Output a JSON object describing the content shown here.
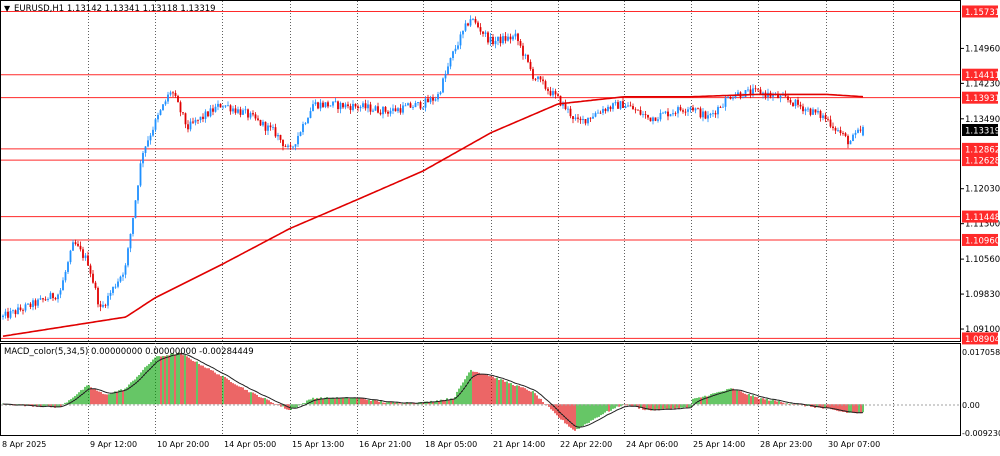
{
  "header": {
    "symbol_line": "EURUSD,H1  1.13142 1.13341 1.13118 1.13319"
  },
  "indicator": {
    "label": "MACD_color(5,34,5) 0.00000000 0.00000000 -0.00284449"
  },
  "colors": {
    "bull": "#1e90ff",
    "bear": "#e00000",
    "ma": "#e00000",
    "hline": "#ff2a2a",
    "macd_up": "#00a000",
    "macd_down": "#e00000",
    "signal": "#202020",
    "grid": "#606060",
    "current_price_bg": "#000000"
  },
  "price_axis": {
    "ticks": [
      "1.14960",
      "1.14230",
      "1.13490",
      "1.12030",
      "1.11300",
      "1.10560",
      "1.09830",
      "1.09100"
    ],
    "current": "1.13319"
  },
  "horizontal_levels": [
    "1.15731",
    "1.14411",
    "1.13931",
    "1.12862",
    "1.12628",
    "1.11448",
    "1.10960",
    "1.08904"
  ],
  "macd_axis": {
    "ticks": [
      "0.0170583",
      "0.00",
      "-0.0092300"
    ]
  },
  "time_axis": {
    "labels": [
      "8 Apr 2025",
      "9 Apr 12:00",
      "10 Apr 20:00",
      "14 Apr 05:00",
      "15 Apr 13:00",
      "16 Apr 21:00",
      "18 Apr 05:00",
      "21 Apr 14:00",
      "22 Apr 22:00",
      "24 Apr 06:00",
      "25 Apr 14:00",
      "28 Apr 23:00",
      "30 Apr 07:00"
    ]
  },
  "chart_data": {
    "type": "candlestick",
    "symbol": "EURUSD",
    "timeframe": "H1",
    "last_bar": {
      "open": 1.13142,
      "high": 1.13341,
      "low": 1.13118,
      "close": 1.13319
    },
    "ylim": [
      1.0885,
      1.1595
    ],
    "close_path": [
      {
        "x": "8 Apr 2025",
        "y": 1.0935
      },
      {
        "x": "9 Apr 00:00",
        "y": 1.0985
      },
      {
        "x": "9 Apr 06:00",
        "y": 1.109
      },
      {
        "x": "9 Apr 12:00",
        "y": 1.105
      },
      {
        "x": "9 Apr 18:00",
        "y": 1.095
      },
      {
        "x": "10 Apr 06:00",
        "y": 1.104
      },
      {
        "x": "10 Apr 14:00",
        "y": 1.128
      },
      {
        "x": "10 Apr 20:00",
        "y": 1.134
      },
      {
        "x": "11 Apr 04:00",
        "y": 1.141
      },
      {
        "x": "11 Apr 12:00",
        "y": 1.133
      },
      {
        "x": "14 Apr 05:00",
        "y": 1.138
      },
      {
        "x": "14 Apr 16:00",
        "y": 1.136
      },
      {
        "x": "15 Apr 06:00",
        "y": 1.132
      },
      {
        "x": "15 Apr 13:00",
        "y": 1.128
      },
      {
        "x": "16 Apr 00:00",
        "y": 1.138
      },
      {
        "x": "16 Apr 21:00",
        "y": 1.1375
      },
      {
        "x": "17 Apr 12:00",
        "y": 1.1365
      },
      {
        "x": "18 Apr 05:00",
        "y": 1.138
      },
      {
        "x": "18 Apr 12:00",
        "y": 1.1395
      },
      {
        "x": "18 Apr 20:00",
        "y": 1.149
      },
      {
        "x": "21 Apr 04:00",
        "y": 1.156
      },
      {
        "x": "21 Apr 14:00",
        "y": 1.151
      },
      {
        "x": "22 Apr 02:00",
        "y": 1.152
      },
      {
        "x": "22 Apr 10:00",
        "y": 1.144
      },
      {
        "x": "22 Apr 22:00",
        "y": 1.139
      },
      {
        "x": "23 Apr 08:00",
        "y": 1.134
      },
      {
        "x": "23 Apr 20:00",
        "y": 1.137
      },
      {
        "x": "24 Apr 06:00",
        "y": 1.138
      },
      {
        "x": "24 Apr 18:00",
        "y": 1.135
      },
      {
        "x": "25 Apr 14:00",
        "y": 1.1375
      },
      {
        "x": "25 Apr 22:00",
        "y": 1.135
      },
      {
        "x": "28 Apr 10:00",
        "y": 1.14
      },
      {
        "x": "28 Apr 23:00",
        "y": 1.1405
      },
      {
        "x": "29 Apr 12:00",
        "y": 1.139
      },
      {
        "x": "30 Apr 07:00",
        "y": 1.135
      },
      {
        "x": "30 Apr 18:00",
        "y": 1.13
      },
      {
        "x": "1 May 00:00",
        "y": 1.13319
      }
    ],
    "moving_average": [
      {
        "x": "8 Apr 2025",
        "y": 1.0895
      },
      {
        "x": "10 Apr 06:00",
        "y": 1.0935
      },
      {
        "x": "10 Apr 20:00",
        "y": 1.0975
      },
      {
        "x": "14 Apr 05:00",
        "y": 1.1045
      },
      {
        "x": "15 Apr 13:00",
        "y": 1.112
      },
      {
        "x": "16 Apr 21:00",
        "y": 1.118
      },
      {
        "x": "18 Apr 05:00",
        "y": 1.124
      },
      {
        "x": "21 Apr 14:00",
        "y": 1.132
      },
      {
        "x": "22 Apr 22:00",
        "y": 1.138
      },
      {
        "x": "24 Apr 06:00",
        "y": 1.1395
      },
      {
        "x": "25 Apr 14:00",
        "y": 1.1395
      },
      {
        "x": "28 Apr 23:00",
        "y": 1.14
      },
      {
        "x": "30 Apr 07:00",
        "y": 1.14
      },
      {
        "x": "1 May 00:00",
        "y": 1.1395
      }
    ],
    "macd_ylim": [
      -0.00923,
      0.0170583
    ],
    "macd_path": [
      {
        "x": "8 Apr 2025",
        "y": 0.0
      },
      {
        "x": "9 Apr 00:00",
        "y": -0.001
      },
      {
        "x": "9 Apr 12:00",
        "y": 0.006
      },
      {
        "x": "9 Apr 20:00",
        "y": 0.003
      },
      {
        "x": "10 Apr 06:00",
        "y": 0.005
      },
      {
        "x": "10 Apr 20:00",
        "y": 0.015
      },
      {
        "x": "11 Apr 08:00",
        "y": 0.0165
      },
      {
        "x": "14 Apr 05:00",
        "y": 0.009
      },
      {
        "x": "14 Apr 18:00",
        "y": 0.004
      },
      {
        "x": "15 Apr 13:00",
        "y": -0.002
      },
      {
        "x": "16 Apr 00:00",
        "y": 0.002
      },
      {
        "x": "16 Apr 21:00",
        "y": 0.002
      },
      {
        "x": "17 Apr 12:00",
        "y": 0.0005
      },
      {
        "x": "18 Apr 05:00",
        "y": 0.0005
      },
      {
        "x": "18 Apr 20:00",
        "y": 0.002
      },
      {
        "x": "21 Apr 04:00",
        "y": 0.011
      },
      {
        "x": "21 Apr 14:00",
        "y": 0.009
      },
      {
        "x": "22 Apr 10:00",
        "y": 0.004
      },
      {
        "x": "22 Apr 22:00",
        "y": -0.004
      },
      {
        "x": "23 Apr 06:00",
        "y": -0.0085
      },
      {
        "x": "23 Apr 20:00",
        "y": -0.003
      },
      {
        "x": "24 Apr 06:00",
        "y": 0.0
      },
      {
        "x": "24 Apr 18:00",
        "y": -0.002
      },
      {
        "x": "25 Apr 14:00",
        "y": -0.001
      },
      {
        "x": "26 Apr 00:00",
        "y": 0.0005
      },
      {
        "x": "28 Apr 10:00",
        "y": 0.005
      },
      {
        "x": "28 Apr 23:00",
        "y": 0.002
      },
      {
        "x": "29 Apr 12:00",
        "y": 0.0005
      },
      {
        "x": "30 Apr 07:00",
        "y": -0.0015
      },
      {
        "x": "30 Apr 18:00",
        "y": -0.0028
      },
      {
        "x": "1 May 00:00",
        "y": -0.0028
      }
    ]
  }
}
